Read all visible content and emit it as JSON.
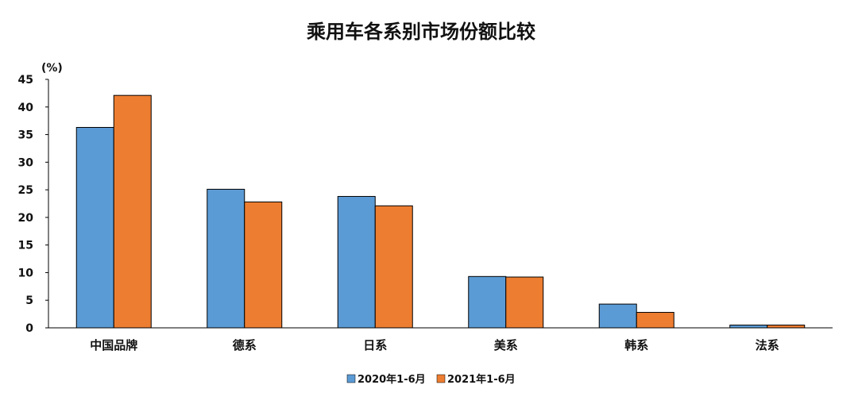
{
  "chart_data": {
    "type": "bar",
    "title": "乘用车各系别市场份额比较",
    "ylabel": "(%)",
    "xlabel": "",
    "ylim": [
      0,
      45
    ],
    "yticks": [
      0,
      5,
      10,
      15,
      20,
      25,
      30,
      35,
      40,
      45
    ],
    "categories": [
      "中国品牌",
      "德系",
      "日系",
      "美系",
      "韩系",
      "法系"
    ],
    "series": [
      {
        "name": "2020年1-6月",
        "color": "#5B9BD5",
        "values": [
          36.3,
          25.1,
          23.8,
          9.3,
          4.3,
          0.5
        ]
      },
      {
        "name": "2021年1-6月",
        "color": "#ED7D31",
        "values": [
          42.1,
          22.8,
          22.1,
          9.2,
          2.8,
          0.5
        ]
      }
    ],
    "grid": false,
    "legend_position": "bottom"
  }
}
